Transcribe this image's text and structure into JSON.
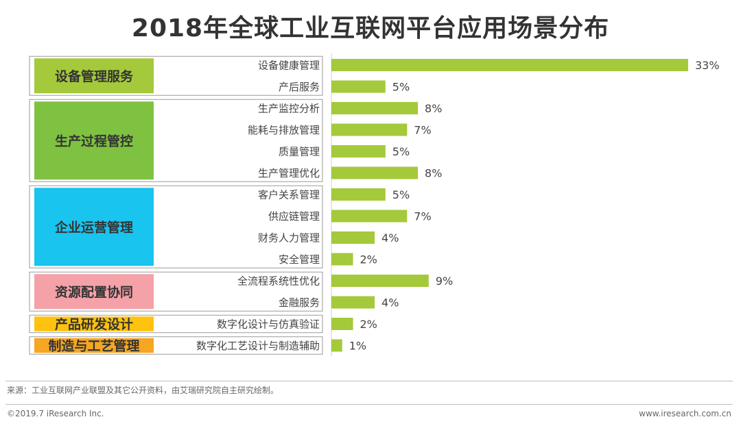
{
  "chart_data": {
    "type": "bar",
    "orientation": "horizontal",
    "title": "2018年全球工业互联网平台应用场景分布",
    "value_suffix": "%",
    "bar_color": "#a4c93a",
    "groups": [
      {
        "name": "设备管理服务",
        "color": "#a4c93a",
        "items": [
          {
            "label": "设备健康管理",
            "value": 33
          },
          {
            "label": "产后服务",
            "value": 5
          }
        ]
      },
      {
        "name": "生产过程管控",
        "color": "#7fc241",
        "items": [
          {
            "label": "生产监控分析",
            "value": 8
          },
          {
            "label": "能耗与排放管理",
            "value": 7
          },
          {
            "label": "质量管理",
            "value": 5
          },
          {
            "label": "生产管理优化",
            "value": 8
          }
        ]
      },
      {
        "name": "企业运营管理",
        "color": "#19c4ee",
        "items": [
          {
            "label": "客户关系管理",
            "value": 5
          },
          {
            "label": "供应链管理",
            "value": 7
          },
          {
            "label": "财务人力管理",
            "value": 4
          },
          {
            "label": "安全管理",
            "value": 2
          }
        ]
      },
      {
        "name": "资源配置协同",
        "color": "#f4a1a8",
        "items": [
          {
            "label": "全流程系统性优化",
            "value": 9
          },
          {
            "label": "金融服务",
            "value": 4
          }
        ]
      },
      {
        "name": "产品研发设计",
        "color": "#ffc20e",
        "items": [
          {
            "label": "数字化设计与仿真验证",
            "value": 2
          }
        ]
      },
      {
        "name": "制造与工艺管理",
        "color": "#f5a623",
        "items": [
          {
            "label": "数字化工艺设计与制造辅助",
            "value": 1
          }
        ]
      }
    ],
    "xlim": [
      0,
      33
    ]
  },
  "footer": {
    "source": "来源：工业互联网产业联盟及其它公开资料，由艾瑞研究院自主研究绘制。",
    "copyright": "©2019.7 iResearch Inc.",
    "website": "www.iresearch.com.cn"
  }
}
